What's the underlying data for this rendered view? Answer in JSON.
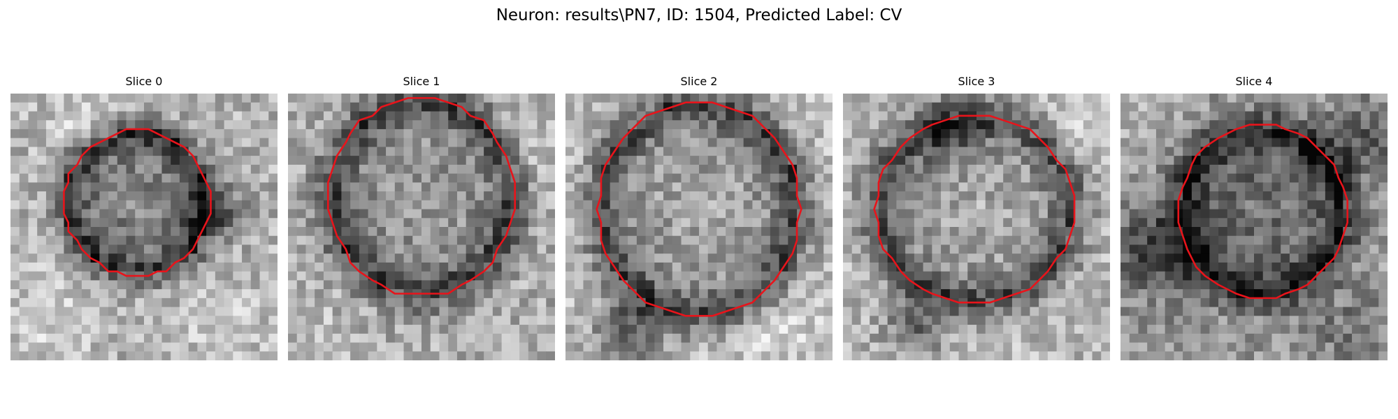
{
  "figure": {
    "title": "Neuron: results\\PN7, ID: 1504, Predicted Label: CV"
  },
  "panels": [
    {
      "title": "Slice 0"
    },
    {
      "title": "Slice 1"
    },
    {
      "title": "Slice 2"
    },
    {
      "title": "Slice 3"
    },
    {
      "title": "Slice 4"
    }
  ],
  "style": {
    "contour_color": "#e8141b"
  }
}
